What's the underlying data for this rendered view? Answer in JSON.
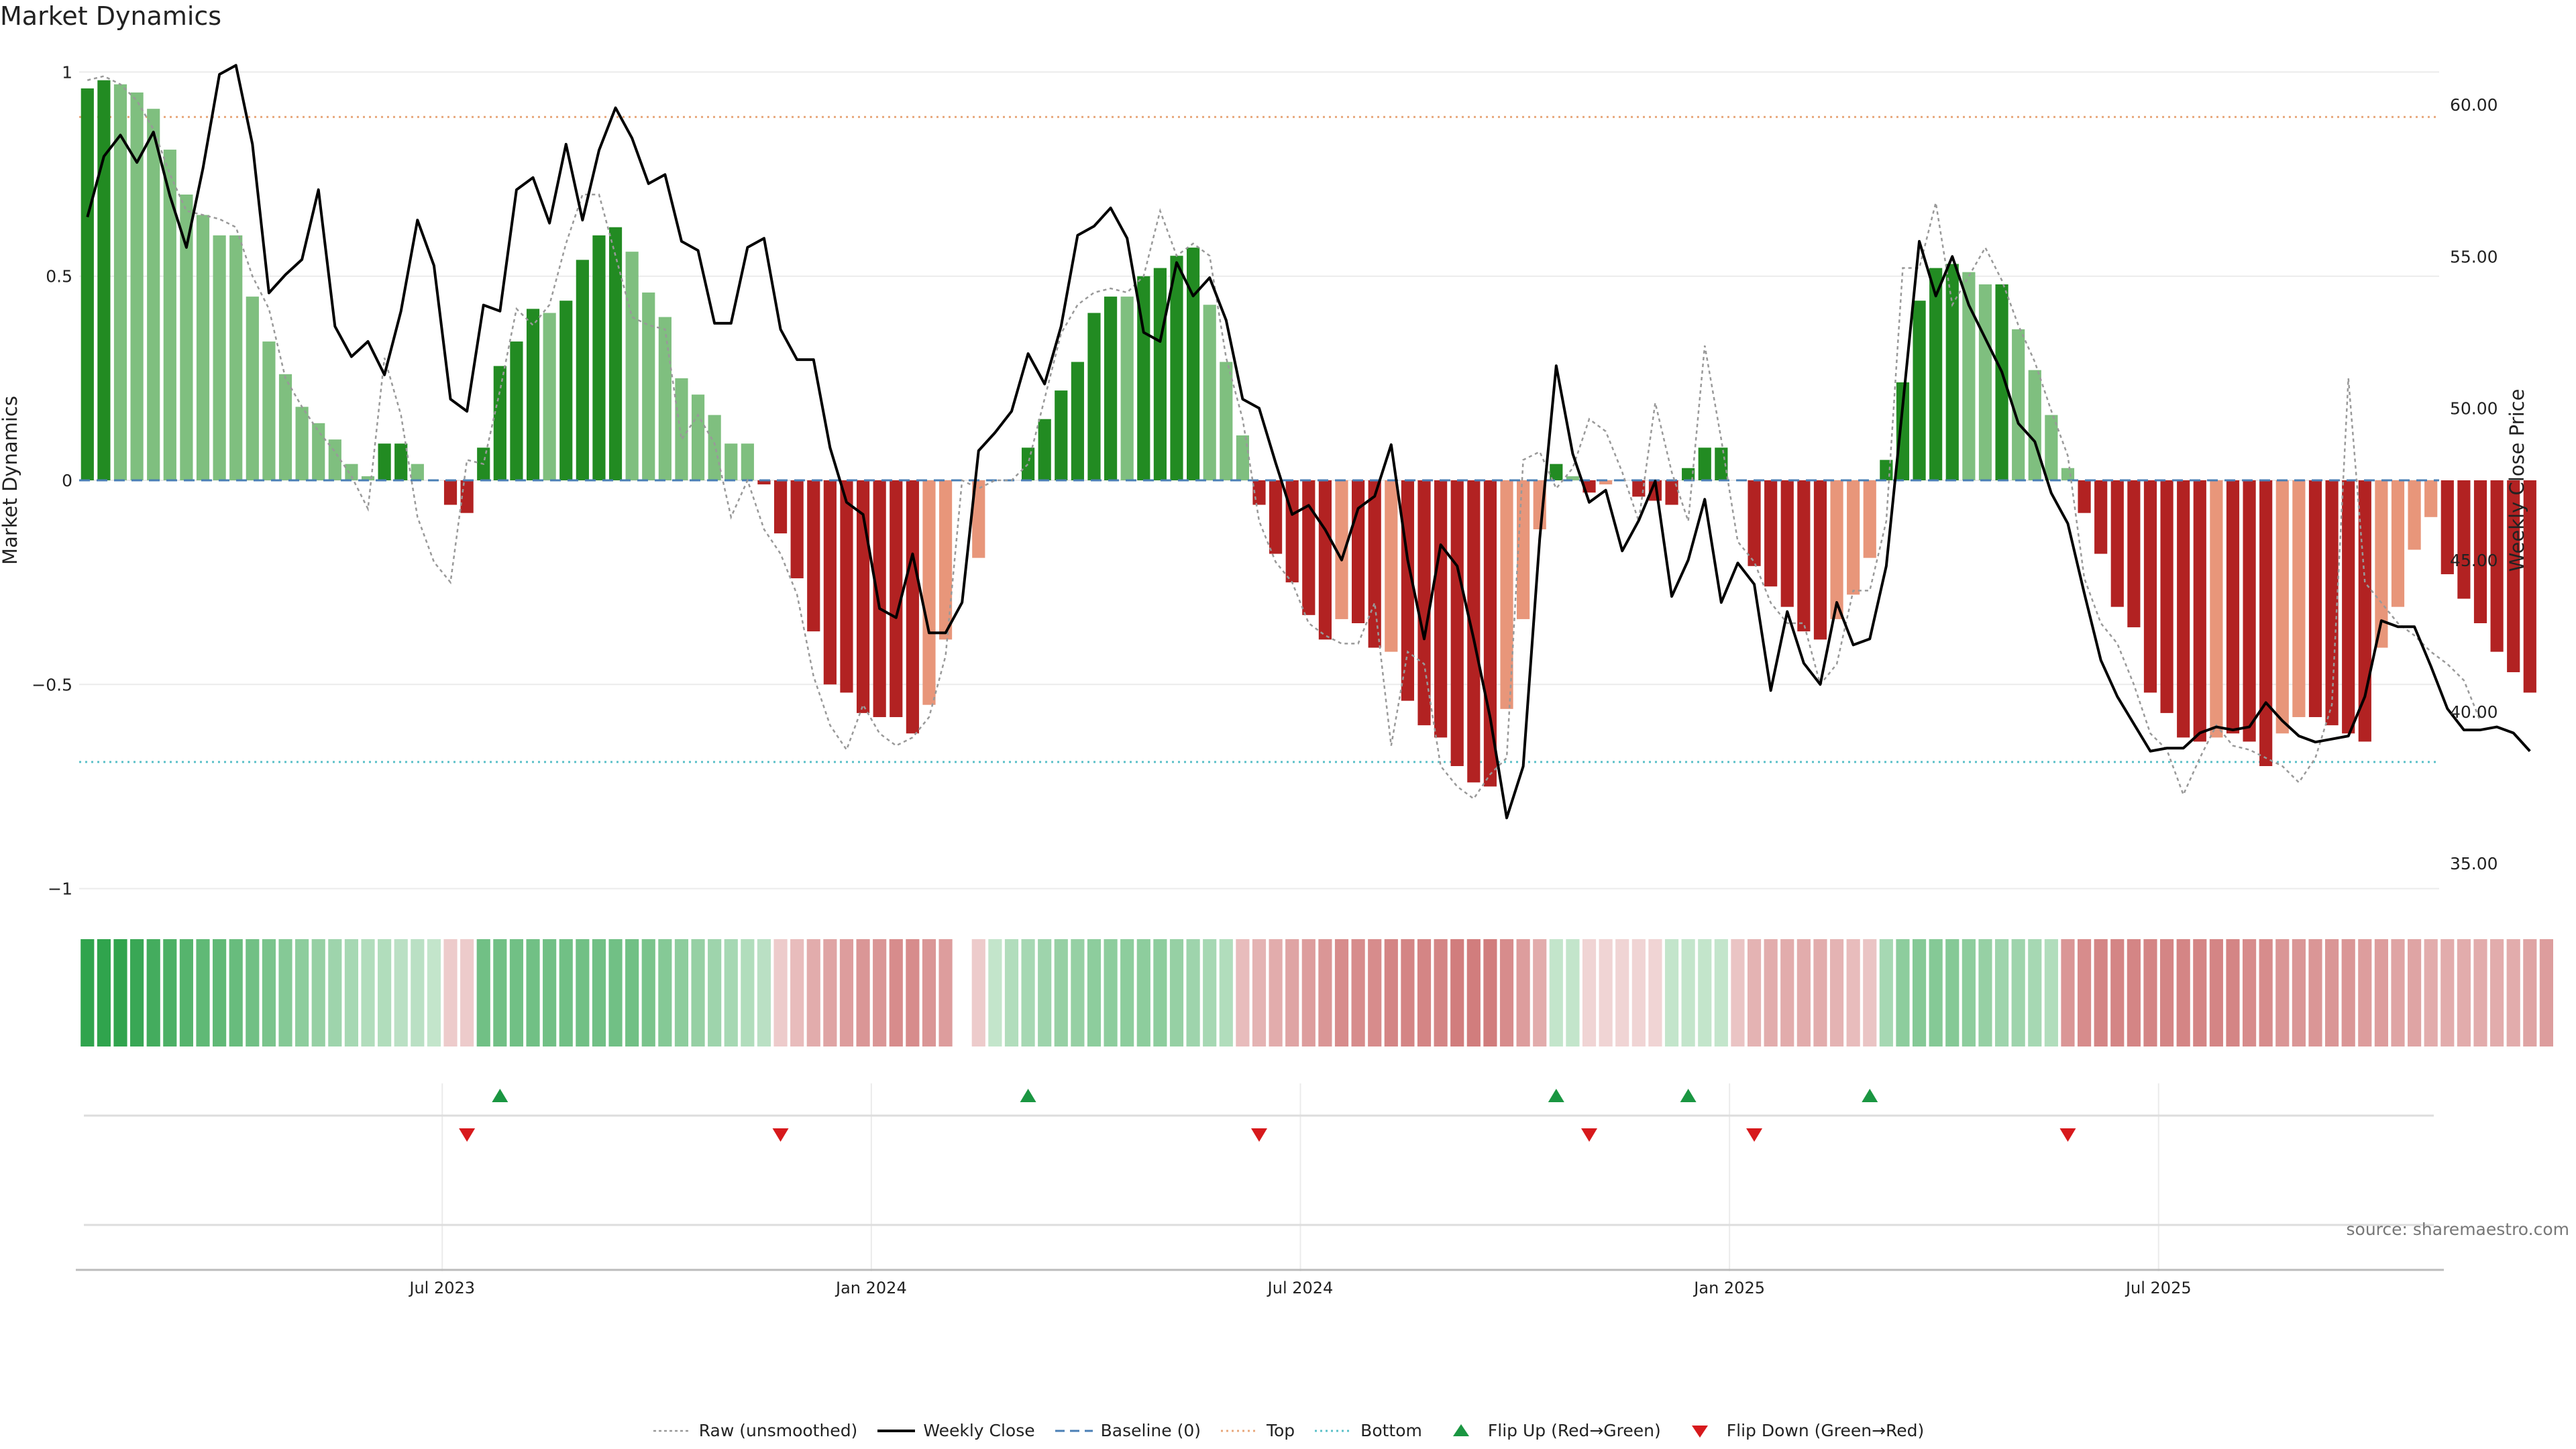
{
  "title": "Market Dynamics",
  "source": "source: sharemaestro.com",
  "colors": {
    "strong_green": "#228b22",
    "light_green": "#7fbf7f",
    "strong_red": "#b22222",
    "light_red": "#e8967a",
    "price_line": "#000000",
    "raw_line": "#999999",
    "baseline": "#4a7fb5",
    "top": "#e8a87c",
    "bottom": "#5bc0c8",
    "flip_up": "#1a9641",
    "flip_down": "#d7191c"
  },
  "legend": [
    {
      "key": "raw",
      "label": "Raw (unsmoothed)",
      "icon": "dotted-line-icon"
    },
    {
      "key": "close",
      "label": "Weekly Close",
      "icon": "solid-line-icon"
    },
    {
      "key": "baseline",
      "label": "Baseline (0)",
      "icon": "dashed-line-icon"
    },
    {
      "key": "top",
      "label": "Top",
      "icon": "dotted-line-icon"
    },
    {
      "key": "bottom",
      "label": "Bottom",
      "icon": "dotted-line-icon"
    },
    {
      "key": "flip_up",
      "label": "Flip Up (Red→Green)",
      "icon": "triangle-up-icon"
    },
    {
      "key": "flip_down",
      "label": "Flip Down (Green→Red)",
      "icon": "triangle-down-icon"
    }
  ],
  "chart_data": {
    "type": "bar",
    "ylabel": "Market Dynamics",
    "y2label": "Weekly Close Price",
    "ylim": [
      -1.05,
      1.05
    ],
    "y2lim": [
      33.5,
      61.75
    ],
    "yticks": [
      {
        "v": 1,
        "label": "1"
      },
      {
        "v": 0.5,
        "label": "0.5"
      },
      {
        "v": 0,
        "label": "0"
      },
      {
        "v": -0.5,
        "label": "−0.5"
      },
      {
        "v": -1,
        "label": "−1"
      }
    ],
    "y2ticks": [
      {
        "v": 60,
        "label": "60.00"
      },
      {
        "v": 55,
        "label": "55.00"
      },
      {
        "v": 50,
        "label": "50.00"
      },
      {
        "v": 45,
        "label": "45.00"
      },
      {
        "v": 40,
        "label": "40.00"
      },
      {
        "v": 35,
        "label": "35.00"
      }
    ],
    "top": 0.89,
    "bottom": -0.69,
    "baseline": 0,
    "xlim": [
      0,
      143
    ],
    "xticks": [
      {
        "i": 22,
        "label": "Jul 2023"
      },
      {
        "i": 48,
        "label": "Jan 2024"
      },
      {
        "i": 74,
        "label": "Jul 2024"
      },
      {
        "i": 100,
        "label": "Jan 2025"
      },
      {
        "i": 126,
        "label": "Jul 2025"
      }
    ],
    "bars": [
      0.96,
      0.98,
      0.97,
      0.95,
      0.91,
      0.81,
      0.7,
      0.65,
      0.6,
      0.6,
      0.45,
      0.34,
      0.26,
      0.18,
      0.14,
      0.1,
      0.04,
      0.01,
      0.09,
      0.09,
      0.04,
      0,
      -0.06,
      -0.08,
      0.08,
      0.28,
      0.34,
      0.42,
      0.41,
      0.44,
      0.54,
      0.6,
      0.62,
      0.56,
      0.46,
      0.4,
      0.25,
      0.21,
      0.16,
      0.09,
      0.09,
      -0.01,
      -0.13,
      -0.24,
      -0.37,
      -0.5,
      -0.52,
      -0.57,
      -0.58,
      -0.58,
      -0.62,
      -0.55,
      -0.39,
      0,
      -0.19,
      0,
      0,
      0.08,
      0.15,
      0.22,
      0.29,
      0.41,
      0.45,
      0.45,
      0.5,
      0.52,
      0.55,
      0.57,
      0.43,
      0.29,
      0.11,
      -0.06,
      -0.18,
      -0.25,
      -0.33,
      -0.39,
      -0.34,
      -0.35,
      -0.41,
      -0.42,
      -0.54,
      -0.6,
      -0.63,
      -0.7,
      -0.74,
      -0.75,
      -0.56,
      -0.34,
      -0.12,
      0.04,
      0.01,
      -0.03,
      -0.01,
      0,
      -0.04,
      -0.05,
      -0.06,
      0.03,
      0.08,
      0.08,
      0,
      -0.21,
      -0.26,
      -0.31,
      -0.37,
      -0.39,
      -0.34,
      -0.28,
      -0.19,
      0.05,
      0.24,
      0.44,
      0.52,
      0.53,
      0.51,
      0.48,
      0.48,
      0.37,
      0.27,
      0.16,
      0.03,
      -0.08,
      -0.18,
      -0.31,
      -0.36,
      -0.52,
      -0.57,
      -0.63,
      -0.64,
      -0.63,
      -0.62,
      -0.64,
      -0.7,
      -0.62,
      -0.58,
      -0.58,
      -0.6,
      -0.62,
      -0.64,
      -0.41,
      -0.31,
      -0.17,
      -0.09,
      -0.23,
      -0.29,
      -0.35,
      -0.42,
      -0.47,
      -0.52
    ],
    "bar_shades": [
      "s",
      "s",
      "l",
      "l",
      "l",
      "l",
      "l",
      "l",
      "l",
      "l",
      "l",
      "l",
      "l",
      "l",
      "l",
      "l",
      "l",
      "l",
      "s",
      "s",
      "l",
      "l",
      "s",
      "s",
      "s",
      "s",
      "s",
      "s",
      "l",
      "s",
      "s",
      "s",
      "s",
      "l",
      "l",
      "l",
      "l",
      "l",
      "l",
      "l",
      "l",
      "s",
      "s",
      "s",
      "s",
      "s",
      "s",
      "s",
      "s",
      "s",
      "s",
      "l",
      "l",
      "l",
      "l",
      "l",
      "l",
      "s",
      "s",
      "s",
      "s",
      "s",
      "s",
      "l",
      "s",
      "s",
      "s",
      "s",
      "l",
      "l",
      "l",
      "s",
      "s",
      "s",
      "s",
      "s",
      "l",
      "s",
      "s",
      "l",
      "s",
      "s",
      "s",
      "s",
      "s",
      "s",
      "l",
      "l",
      "l",
      "s",
      "l",
      "s",
      "l",
      "l",
      "s",
      "s",
      "s",
      "s",
      "s",
      "s",
      "l",
      "s",
      "s",
      "s",
      "s",
      "s",
      "l",
      "l",
      "l",
      "s",
      "s",
      "s",
      "s",
      "s",
      "l",
      "l",
      "s",
      "l",
      "l",
      "l",
      "l",
      "s",
      "s",
      "s",
      "s",
      "s",
      "s",
      "s",
      "s",
      "l",
      "s",
      "s",
      "s",
      "l",
      "l",
      "s",
      "s",
      "s",
      "s",
      "l",
      "l",
      "l",
      "l",
      "s",
      "s",
      "s",
      "s",
      "s",
      "s"
    ],
    "raw": [
      0.98,
      0.99,
      0.97,
      0.93,
      0.86,
      0.75,
      0.66,
      0.65,
      0.64,
      0.62,
      0.5,
      0.42,
      0.25,
      0.18,
      0.12,
      0.07,
      0.01,
      -0.07,
      0.3,
      0.16,
      -0.09,
      -0.2,
      -0.25,
      0.05,
      0.04,
      0.22,
      0.42,
      0.38,
      0.43,
      0.58,
      0.7,
      0.7,
      0.55,
      0.4,
      0.38,
      0.37,
      0.1,
      0.16,
      0.09,
      -0.09,
      0.0,
      -0.12,
      -0.18,
      -0.28,
      -0.48,
      -0.6,
      -0.66,
      -0.55,
      -0.62,
      -0.65,
      -0.63,
      -0.58,
      -0.43,
      0.0,
      -0.02,
      0.0,
      0.0,
      0.04,
      0.2,
      0.36,
      0.43,
      0.46,
      0.47,
      0.46,
      0.5,
      0.66,
      0.55,
      0.58,
      0.55,
      0.3,
      0.15,
      -0.1,
      -0.2,
      -0.25,
      -0.35,
      -0.38,
      -0.4,
      -0.4,
      -0.3,
      -0.65,
      -0.42,
      -0.45,
      -0.7,
      -0.75,
      -0.78,
      -0.72,
      -0.68,
      0.05,
      0.07,
      -0.02,
      0.03,
      0.15,
      0.12,
      0.02,
      -0.1,
      0.19,
      0.02,
      -0.1,
      0.33,
      0.1,
      -0.15,
      -0.2,
      -0.3,
      -0.35,
      -0.35,
      -0.5,
      -0.45,
      -0.27,
      -0.27,
      -0.1,
      0.52,
      0.52,
      0.68,
      0.43,
      0.5,
      0.57,
      0.49,
      0.38,
      0.29,
      0.17,
      0.06,
      -0.24,
      -0.35,
      -0.4,
      -0.5,
      -0.62,
      -0.66,
      -0.77,
      -0.68,
      -0.6,
      -0.65,
      -0.66,
      -0.68,
      -0.7,
      -0.74,
      -0.68,
      -0.55,
      0.25,
      -0.25,
      -0.3,
      -0.35,
      -0.38,
      -0.42,
      -0.45,
      -0.49,
      -0.59
    ],
    "close": [
      56.3,
      58.3,
      59.0,
      58.1,
      59.1,
      57.0,
      55.3,
      57.9,
      61.0,
      61.3,
      58.7,
      53.8,
      54.4,
      54.9,
      57.2,
      52.7,
      51.7,
      52.2,
      51.1,
      53.2,
      56.2,
      54.7,
      50.3,
      49.9,
      53.4,
      53.2,
      57.2,
      57.6,
      56.1,
      58.7,
      56.2,
      58.5,
      59.9,
      58.9,
      57.4,
      57.7,
      55.5,
      55.2,
      52.8,
      52.8,
      55.3,
      55.6,
      52.6,
      51.6,
      51.6,
      48.7,
      46.9,
      46.5,
      43.4,
      43.1,
      45.2,
      42.6,
      42.6,
      43.6,
      48.6,
      49.2,
      49.9,
      51.8,
      50.8,
      52.7,
      55.7,
      56.0,
      56.6,
      55.6,
      52.5,
      52.2,
      54.8,
      53.7,
      54.3,
      52.9,
      50.3,
      50.0,
      48.2,
      46.5,
      46.8,
      46.0,
      45.0,
      46.7,
      47.1,
      48.8,
      45.0,
      42.4,
      45.5,
      44.8,
      42.4,
      39.8,
      36.5,
      38.2,
      45.7,
      51.4,
      48.5,
      46.9,
      47.3,
      45.3,
      46.3,
      47.6,
      43.8,
      45.0,
      47.0,
      43.6,
      44.9,
      44.2,
      40.7,
      43.3,
      41.6,
      40.9,
      43.6,
      42.2,
      42.4,
      44.8,
      50.1,
      55.5,
      53.7,
      55.0,
      53.4,
      52.3,
      51.2,
      49.5,
      48.9,
      47.2,
      46.2,
      43.9,
      41.7,
      40.5,
      39.6,
      38.7,
      38.8,
      38.8,
      39.3,
      39.5,
      39.4,
      39.5,
      40.3,
      39.7,
      39.2,
      39.0,
      39.1,
      39.2,
      40.5,
      43.0,
      42.8,
      42.8,
      41.5,
      40.1,
      39.4,
      39.4,
      39.5,
      39.3,
      38.7
    ],
    "regime_strength": [
      0.95,
      0.95,
      0.95,
      0.9,
      0.85,
      0.8,
      0.75,
      0.7,
      0.7,
      0.65,
      0.6,
      0.55,
      0.5,
      0.45,
      0.4,
      0.35,
      0.3,
      0.25,
      0.25,
      0.2,
      0.2,
      0.15,
      -0.15,
      -0.15,
      0.6,
      0.6,
      0.6,
      0.6,
      0.6,
      0.6,
      0.6,
      0.6,
      0.6,
      0.6,
      0.55,
      0.5,
      0.45,
      0.4,
      0.35,
      0.3,
      0.25,
      0.2,
      -0.15,
      -0.25,
      -0.35,
      -0.4,
      -0.45,
      -0.5,
      -0.5,
      -0.55,
      -0.55,
      -0.5,
      -0.45,
      0,
      -0.15,
      0.15,
      0.25,
      0.3,
      0.35,
      0.4,
      0.4,
      0.45,
      0.45,
      0.45,
      0.45,
      0.45,
      0.4,
      0.35,
      0.3,
      0.25,
      -0.25,
      -0.3,
      -0.35,
      -0.4,
      -0.45,
      -0.5,
      -0.55,
      -0.55,
      -0.55,
      -0.6,
      -0.6,
      -0.6,
      -0.6,
      -0.65,
      -0.65,
      -0.65,
      -0.55,
      -0.45,
      -0.35,
      0.15,
      0.15,
      -0.1,
      -0.1,
      -0.1,
      -0.1,
      -0.1,
      0.15,
      0.15,
      0.15,
      0.15,
      -0.2,
      -0.3,
      -0.35,
      -0.35,
      -0.35,
      -0.35,
      -0.3,
      -0.25,
      -0.2,
      0.3,
      0.45,
      0.5,
      0.5,
      0.5,
      0.45,
      0.4,
      0.35,
      0.35,
      0.3,
      0.25,
      -0.5,
      -0.55,
      -0.6,
      -0.6,
      -0.6,
      -0.6,
      -0.6,
      -0.6,
      -0.6,
      -0.6,
      -0.6,
      -0.55,
      -0.55,
      -0.5,
      -0.5,
      -0.5,
      -0.5,
      -0.5,
      -0.45,
      -0.45,
      -0.4,
      -0.4,
      -0.35,
      -0.35,
      -0.35,
      -0.35,
      -0.35,
      -0.35,
      -0.4,
      -0.45
    ],
    "flips_up": [
      25,
      57,
      89,
      97,
      108
    ],
    "flips_down": [
      23,
      42,
      71,
      91,
      101,
      120
    ]
  }
}
